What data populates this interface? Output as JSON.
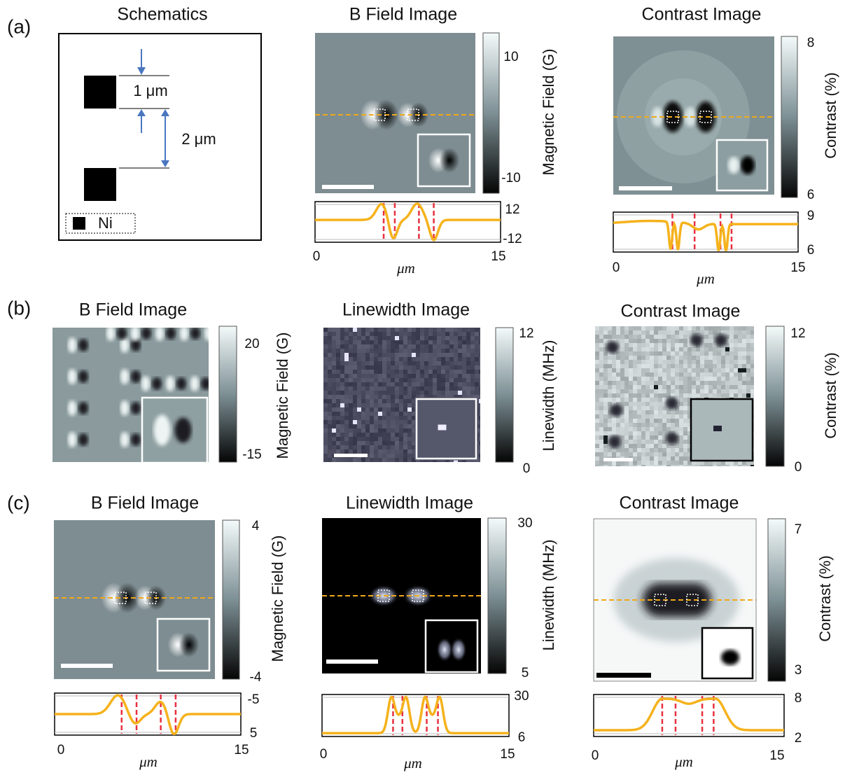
{
  "panels": [
    {
      "label": "(a)",
      "items": [
        {
          "title": "Schematics",
          "dimensions": [
            "1 μm",
            "2 μm"
          ],
          "legend": "Ni"
        },
        {
          "title": "B Field Image",
          "colorbar": {
            "ticks": [
              "10",
              "-10"
            ],
            "label": "Magnetic Field (G)"
          },
          "profile": {
            "yticks": [
              "12",
              "-12"
            ],
            "xticks": [
              "0",
              "15"
            ],
            "xlabel": "μm"
          }
        },
        {
          "title": "Contrast Image",
          "colorbar": {
            "ticks": [
              "8",
              "6"
            ],
            "label": "Contrast (%)"
          },
          "profile": {
            "yticks": [
              "9",
              "6"
            ],
            "xticks": [
              "0",
              "15"
            ],
            "xlabel": "μm"
          }
        }
      ]
    },
    {
      "label": "(b)",
      "items": [
        {
          "title": "B Field Image",
          "colorbar": {
            "ticks": [
              "20",
              "-15"
            ],
            "label": "Magnetic Field (G)"
          }
        },
        {
          "title": "Linewidth Image",
          "colorbar": {
            "ticks": [
              "12",
              "0"
            ],
            "label": "Linewidth (MHz)"
          }
        },
        {
          "title": "Contrast Image",
          "colorbar": {
            "ticks": [
              "12",
              "0"
            ],
            "label": "Contrast (%)"
          }
        }
      ]
    },
    {
      "label": "(c)",
      "items": [
        {
          "title": "B Field Image",
          "colorbar": {
            "ticks": [
              "4",
              "-4"
            ],
            "label": "Magnetic Field (G)"
          },
          "profile": {
            "yticks": [
              "-5",
              "5"
            ],
            "xticks": [
              "0",
              "15"
            ],
            "xlabel": "μm"
          }
        },
        {
          "title": "Linewidth Image",
          "colorbar": {
            "ticks": [
              "30",
              "5"
            ],
            "label": "Linewidth (MHz)"
          },
          "profile": {
            "yticks": [
              "30",
              "6"
            ],
            "xticks": [
              "0",
              "15"
            ],
            "xlabel": "μm"
          }
        },
        {
          "title": "Contrast Image",
          "colorbar": {
            "ticks": [
              "7",
              "3"
            ],
            "label": "Contrast (%)"
          },
          "profile": {
            "yticks": [
              "8",
              "2"
            ],
            "xticks": [
              "0",
              "15"
            ],
            "xlabel": "μm"
          }
        }
      ]
    }
  ]
}
